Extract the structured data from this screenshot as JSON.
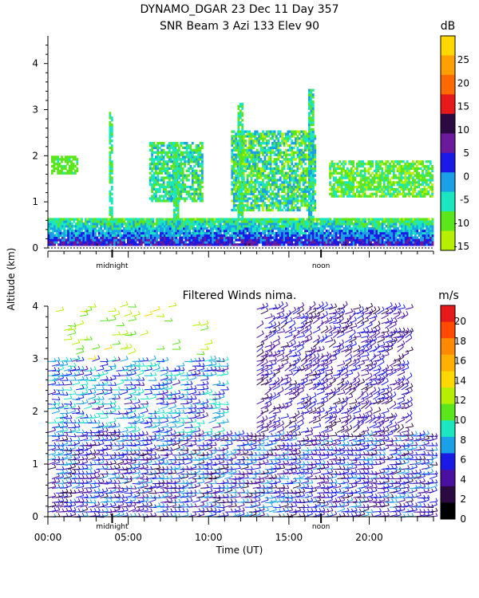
{
  "title": {
    "line1": "DYNAMO_DGAR  23 Dec 11 Day 357",
    "line2": "SNR Beam 3 Azi 133 Elev 90"
  },
  "chart_data": [
    {
      "type": "heatmap",
      "title": "SNR Beam 3 Azi 133 Elev 90",
      "ylabel": "Altitude (km)",
      "xlim": [
        "00:00",
        "24:00"
      ],
      "ylim": [
        0,
        4.6
      ],
      "y_ticks": [
        "0",
        "1",
        "2",
        "3",
        "4"
      ],
      "x_markers": [
        "midnight",
        "noon"
      ],
      "colorbar": {
        "unit": "dB",
        "ticks": [
          "25",
          "20",
          "15",
          "10",
          "5",
          "0",
          "-5",
          "-10",
          "-15"
        ],
        "colors": [
          "#ffd800",
          "#ffa000",
          "#ff6a00",
          "#e61a1a",
          "#2a0a40",
          "#6a1a9a",
          "#1a1ae6",
          "#1aa0e6",
          "#1ae6c0",
          "#5ae61a",
          "#b6f000"
        ]
      },
      "regions": [
        {
          "band": "boundary layer",
          "x": [
            0,
            23.9
          ],
          "alt": [
            0.05,
            0.65
          ],
          "snr_db": [
            -15,
            10
          ]
        },
        {
          "band": "cloud layer",
          "x": [
            0.2,
            1.8
          ],
          "alt": [
            1.6,
            2.0
          ],
          "snr_db": [
            -12,
            -8
          ]
        },
        {
          "band": "cloud layer",
          "x": [
            6.3,
            9.6
          ],
          "alt": [
            1.0,
            2.3
          ],
          "snr_db": [
            -12,
            -2
          ]
        },
        {
          "band": "cloud layer",
          "x": [
            11.4,
            16.6
          ],
          "alt": [
            0.8,
            2.5
          ],
          "snr_db": [
            -15,
            0
          ]
        },
        {
          "band": "cloud layer",
          "x": [
            17.5,
            23.9
          ],
          "alt": [
            1.1,
            1.9
          ],
          "snr_db": [
            -15,
            -5
          ]
        },
        {
          "band": "plume",
          "x": [
            3.8,
            4.0
          ],
          "alt": [
            0.6,
            2.9
          ],
          "snr_db": [
            -10,
            -5
          ]
        },
        {
          "band": "plume",
          "x": [
            7.8,
            8.1
          ],
          "alt": [
            0.6,
            2.3
          ],
          "snr_db": [
            -10,
            -5
          ]
        },
        {
          "band": "plume",
          "x": [
            11.8,
            12.1
          ],
          "alt": [
            0.6,
            3.1
          ],
          "snr_db": [
            -12,
            -5
          ]
        },
        {
          "band": "plume",
          "x": [
            16.2,
            16.5
          ],
          "alt": [
            0.6,
            3.4
          ],
          "snr_db": [
            -12,
            0
          ]
        }
      ]
    },
    {
      "type": "scatter",
      "title": "Filtered Winds nima.",
      "xlabel": "Time (UT)",
      "ylabel": "Altitude (km)",
      "xlim": [
        "00:00",
        "24:00"
      ],
      "ylim": [
        0,
        4.0
      ],
      "x_ticks": [
        "00:00",
        "05:00",
        "10:00",
        "15:00",
        "20:00"
      ],
      "y_ticks": [
        "0",
        "1",
        "2",
        "3",
        "4"
      ],
      "x_markers": [
        "midnight",
        "noon"
      ],
      "colorbar": {
        "unit": "m/s",
        "ticks": [
          "20",
          "18",
          "16",
          "14",
          "12",
          "10",
          "8",
          "6",
          "4",
          "2",
          "0"
        ],
        "colors": [
          "#e61a1a",
          "#ff4a00",
          "#ff8a00",
          "#ffb000",
          "#ffd800",
          "#b6f000",
          "#5ae61a",
          "#1ae6c0",
          "#1aa0e6",
          "#1a1ae6",
          "#4a10a0",
          "#2a0a40",
          "#000000"
        ]
      },
      "regions": [
        {
          "band": "low level",
          "x": [
            0,
            24
          ],
          "alt": [
            0,
            1.6
          ],
          "speed_ms": [
            2,
            8
          ]
        },
        {
          "band": "mid level",
          "x": [
            0,
            11
          ],
          "alt": [
            1.6,
            3.0
          ],
          "speed_ms": [
            4,
            10
          ]
        },
        {
          "band": "upper level",
          "x": [
            13,
            22.5
          ],
          "alt": [
            1.6,
            4.0
          ],
          "speed_ms": [
            2,
            6
          ]
        },
        {
          "band": "scattered upper",
          "x": [
            0.5,
            10
          ],
          "alt": [
            3.0,
            4.0
          ],
          "speed_ms": [
            10,
            14
          ]
        }
      ]
    }
  ]
}
